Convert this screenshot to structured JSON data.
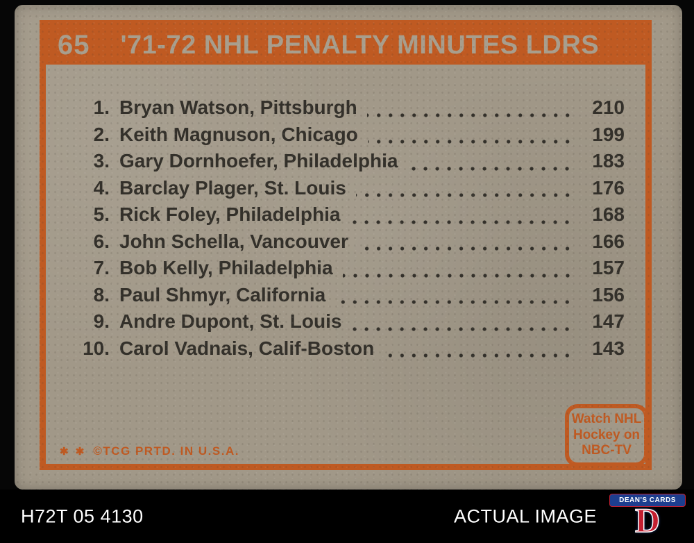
{
  "colors": {
    "orange": "#bf5a22",
    "cardboard": "#a19888",
    "ink": "#33302a"
  },
  "card": {
    "number": "65",
    "title": "'71-72 NHL PENALTY MINUTES LDRS",
    "list": [
      {
        "rank": "1.",
        "name": "Bryan Watson, Pittsburgh",
        "value": "210"
      },
      {
        "rank": "2.",
        "name": "Keith Magnuson, Chicago",
        "value": "199"
      },
      {
        "rank": "3.",
        "name": "Gary Dornhoefer, Philadelphia",
        "value": "183"
      },
      {
        "rank": "4.",
        "name": "Barclay Plager, St. Louis",
        "value": "176"
      },
      {
        "rank": "5.",
        "name": "Rick Foley, Philadelphia",
        "value": "168"
      },
      {
        "rank": "6.",
        "name": "John Schella, Vancouver",
        "value": "166"
      },
      {
        "rank": "7.",
        "name": "Bob Kelly, Philadelphia",
        "value": "157"
      },
      {
        "rank": "8.",
        "name": "Paul Shmyr, California",
        "value": "156"
      },
      {
        "rank": "9.",
        "name": "Andre Dupont, St. Louis",
        "value": "147"
      },
      {
        "rank": "10.",
        "name": "Carol Vadnais, Calif-Boston",
        "value": "143"
      }
    ],
    "nbc_badge": {
      "line1": "Watch NHL",
      "line2": "Hockey on",
      "line3": "NBC-TV"
    },
    "copyright": {
      "symbols": "✱ ✱",
      "text": "©TCG PRTD. IN U.S.A."
    }
  },
  "footer": {
    "code": "H72T 05 4130",
    "label": "ACTUAL IMAGE",
    "logo": {
      "banner": "DEAN'S CARDS",
      "letter": "D"
    }
  }
}
